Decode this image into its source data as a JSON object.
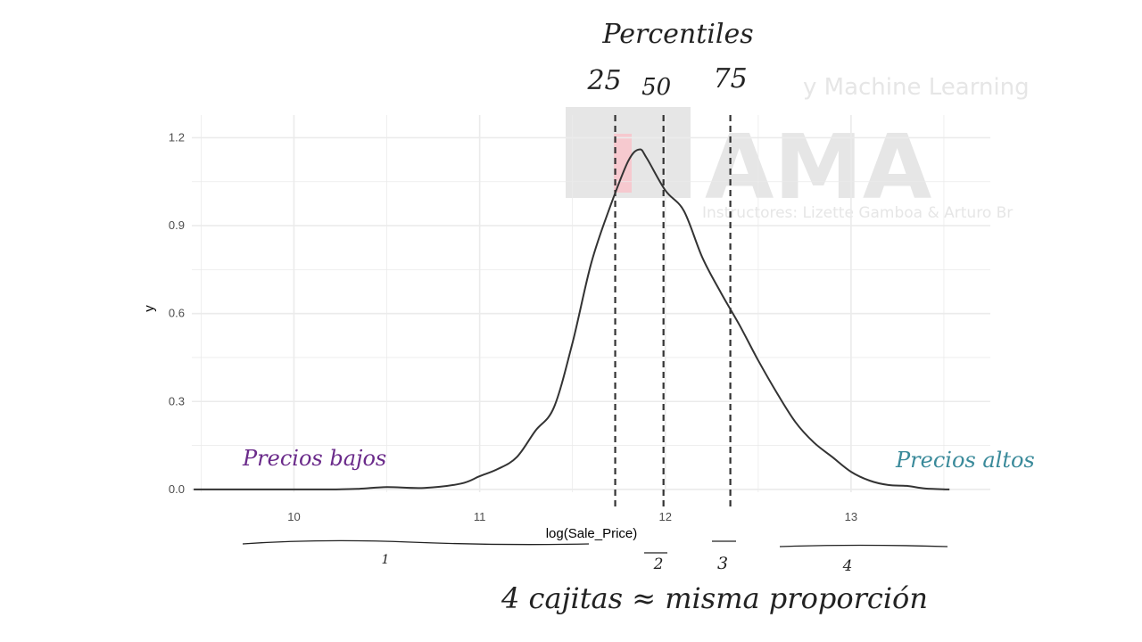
{
  "watermark": {
    "brand": "AMA",
    "tagline": "y Machine Learning",
    "instructors": "Instructores: Lizette Gamboa & Arturo Br"
  },
  "colors": {
    "grid": "#ebebeb",
    "curve": "#333333",
    "quantile_line": "#333333",
    "ink": "#222222",
    "ink_low": "#6a2a8a",
    "ink_high": "#3a8a9a",
    "watermark": "#e6e6e6",
    "watermark_accent": "#f6c9cf"
  },
  "chart_data": {
    "type": "line",
    "title": "",
    "xlabel": "log(Sale_Price)",
    "ylabel": "y",
    "xlim": [
      9.45,
      13.75
    ],
    "ylim": [
      -0.04,
      1.32
    ],
    "x_ticks": [
      10,
      11,
      12,
      13
    ],
    "y_ticks": [
      0.0,
      0.3,
      0.6,
      0.9,
      1.2
    ],
    "x_tick_labels": [
      "10",
      "11",
      "12",
      "13"
    ],
    "y_tick_labels": [
      "0.0",
      "0.3",
      "0.6",
      "0.9",
      "1.2"
    ],
    "grid": true,
    "series": [
      {
        "x": [
          9.46,
          9.8,
          10.2,
          10.35,
          10.5,
          10.7,
          10.9,
          11.0,
          11.1,
          11.2,
          11.3,
          11.4,
          11.5,
          11.6,
          11.7,
          11.8,
          11.86,
          11.9,
          12.0,
          12.1,
          12.2,
          12.3,
          12.4,
          12.5,
          12.6,
          12.7,
          12.8,
          12.9,
          13.0,
          13.1,
          13.2,
          13.3,
          13.4,
          13.53
        ],
        "y": [
          0.0,
          0.0,
          0.0,
          0.002,
          0.008,
          0.005,
          0.02,
          0.045,
          0.07,
          0.11,
          0.2,
          0.28,
          0.5,
          0.77,
          0.96,
          1.12,
          1.16,
          1.13,
          1.02,
          0.95,
          0.79,
          0.67,
          0.56,
          0.44,
          0.33,
          0.23,
          0.16,
          0.11,
          0.06,
          0.03,
          0.015,
          0.012,
          0.003,
          0.0
        ]
      }
    ],
    "quantiles": [
      {
        "label": "25",
        "x": 11.73
      },
      {
        "label": "50",
        "x": 11.99
      },
      {
        "label": "75",
        "x": 12.35
      }
    ]
  },
  "annotations": {
    "percentiles_title": "Percentiles",
    "low_prices": "Precios bajos",
    "high_prices": "Precios altos",
    "bin_labels": [
      "1",
      "2",
      "3",
      "4"
    ],
    "bins_caption": "4 cajitas ≈ misma proporción"
  }
}
